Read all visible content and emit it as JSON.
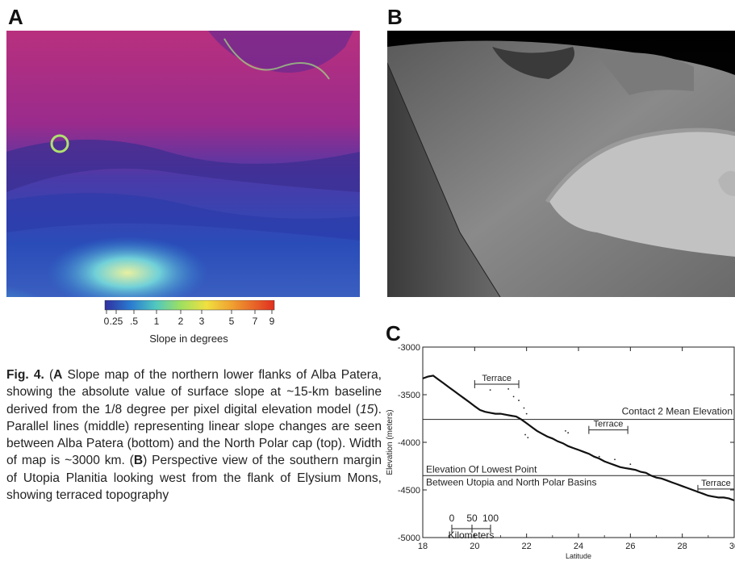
{
  "panels": {
    "a": "A",
    "b": "B",
    "c": "C"
  },
  "colorbar": {
    "ticks": [
      "0",
      ".25",
      ".5",
      "1",
      "2",
      "3",
      "5",
      "7",
      "9"
    ],
    "label": "Slope in degrees"
  },
  "caption": {
    "fig_label": "Fig. 4.",
    "part_a_open": "(",
    "part_a_letter": "A",
    "part_a_close": ")",
    "text_a1": " Slope map of the northern lower flanks of Alba Patera, showing the absolute value of surface slope at ~15-km baseline derived from the 1/8 degree per pixel digital elevation model (",
    "ref": "15",
    "text_a2": "). Parallel lines (middle) representing linear slope changes are seen between Alba Patera (bottom) and the North Polar cap (top). Width of map is ~3000 km. (",
    "part_b_letter": "B",
    "text_b": ") Perspective view of the southern margin of Utopia Planitia looking west from the flank of Elysium Mons, showing terraced topography"
  },
  "chart_data": {
    "type": "line",
    "title": "",
    "xlabel": "Latitude",
    "ylabel": "Elevation (meters)",
    "xlim": [
      18,
      30
    ],
    "ylim": [
      -5000,
      -3000
    ],
    "x_ticks": [
      "18",
      "20",
      "22",
      "24",
      "26",
      "28",
      "30"
    ],
    "y_ticks": [
      "-3000",
      "-3500",
      "-4000",
      "-4500",
      "-5000"
    ],
    "x_tick_values": [
      18,
      20,
      22,
      24,
      26,
      28,
      30
    ],
    "y_tick_values": [
      -3000,
      -3500,
      -4000,
      -4500,
      -5000
    ],
    "series": [
      {
        "x": [
          18.0,
          18.2,
          18.4,
          18.6,
          18.8,
          19.0,
          19.2,
          19.4,
          19.6,
          19.8,
          20.0,
          20.2,
          20.4,
          20.6,
          20.8,
          21.0,
          21.2,
          21.4,
          21.6,
          21.8,
          22.0,
          22.2,
          22.4,
          22.6,
          22.8,
          23.0,
          23.2,
          23.4,
          23.6,
          23.8,
          24.0,
          24.2,
          24.4,
          24.6,
          24.8,
          25.0,
          25.2,
          25.4,
          25.6,
          25.8,
          26.0,
          26.2,
          26.4,
          26.6,
          26.8,
          27.0,
          27.2,
          27.4,
          27.6,
          27.8,
          28.0,
          28.2,
          28.4,
          28.6,
          28.8,
          29.0,
          29.2,
          29.4,
          29.6,
          29.8,
          30.0
        ],
        "y": [
          -3330,
          -3310,
          -3300,
          -3340,
          -3380,
          -3420,
          -3460,
          -3500,
          -3540,
          -3580,
          -3620,
          -3660,
          -3680,
          -3690,
          -3700,
          -3700,
          -3710,
          -3720,
          -3730,
          -3760,
          -3800,
          -3840,
          -3880,
          -3910,
          -3940,
          -3960,
          -3990,
          -4010,
          -4040,
          -4060,
          -4080,
          -4100,
          -4120,
          -4150,
          -4170,
          -4200,
          -4220,
          -4240,
          -4260,
          -4270,
          -4280,
          -4290,
          -4310,
          -4320,
          -4350,
          -4370,
          -4380,
          -4400,
          -4420,
          -4440,
          -4460,
          -4480,
          -4500,
          -4520,
          -4540,
          -4560,
          -4570,
          -4580,
          -4580,
          -4590,
          -4610
        ]
      }
    ],
    "hlines": [
      {
        "y": -3760,
        "label": "Contact 2 Mean Elevation"
      },
      {
        "y": -4350,
        "label": "Elevation Of Lowest Point",
        "label2": "Between Utopia and North Polar Basins"
      }
    ],
    "terraces": [
      {
        "x1": 20.0,
        "x2": 21.7,
        "y": -3390,
        "label": "Terrace"
      },
      {
        "x1": 24.4,
        "x2": 25.9,
        "y": -3870,
        "label": "Terrace"
      },
      {
        "x1": 28.6,
        "x2": 30.0,
        "y": -4490,
        "label": "Terrace"
      }
    ],
    "scalebar": {
      "ticks": [
        "0",
        "50",
        "100"
      ],
      "label": "Kilometers"
    },
    "scatter_points": {
      "x": [
        20.6,
        21.3,
        21.5,
        21.7,
        21.9,
        22.0,
        21.95,
        22.05,
        23.5,
        23.6,
        24.8,
        25.4,
        26.0
      ],
      "y": [
        -3450,
        -3440,
        -3520,
        -3560,
        -3640,
        -3700,
        -3920,
        -3950,
        -3880,
        -3900,
        -4150,
        -4180,
        -4230
      ]
    }
  }
}
